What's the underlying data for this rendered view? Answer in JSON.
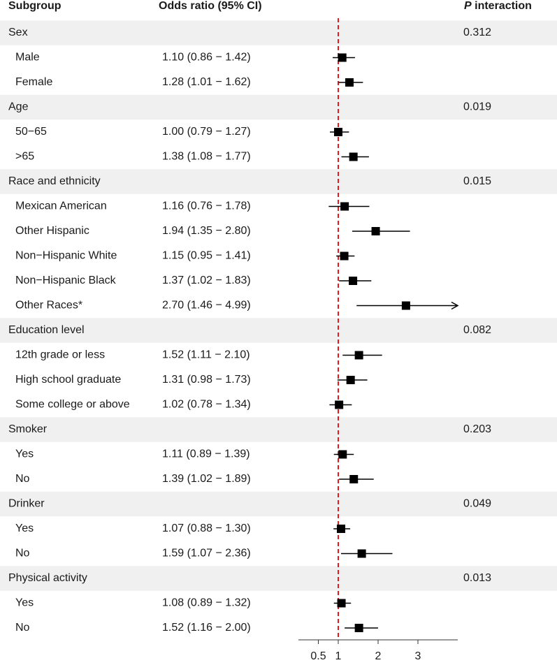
{
  "chart_data": {
    "type": "forest",
    "headers": {
      "subgroup": "Subgroup",
      "estimate": "Odds ratio (95% CI)",
      "p_italic": "P",
      "p_rest": "interaction"
    },
    "xlim": [
      0,
      4
    ],
    "xticks": [
      0.5,
      1,
      2,
      3
    ],
    "reference_line": 1,
    "marker_color": "#000000",
    "reference_color": "#e41a1c",
    "band_color": "#f0f0f0",
    "groups": [
      {
        "name": "Sex",
        "p": 0.312,
        "subgroups": [
          "Male",
          "Female"
        ],
        "values": [
          1.1,
          1.28
        ],
        "lower": [
          0.86,
          1.01
        ],
        "upper": [
          1.42,
          1.62
        ],
        "value_labels": [
          "1.10 (0.86 − 1.42)",
          "1.28 (1.01 − 1.62)"
        ]
      },
      {
        "name": "Age",
        "p": 0.019,
        "subgroups": [
          "50−65",
          ">65"
        ],
        "values": [
          1.0,
          1.38
        ],
        "lower": [
          0.79,
          1.08
        ],
        "upper": [
          1.27,
          1.77
        ],
        "value_labels": [
          "1.00 (0.79 − 1.27)",
          "1.38 (1.08 − 1.77)"
        ]
      },
      {
        "name": "Race and ethnicity",
        "p": 0.015,
        "subgroups": [
          "Mexican American",
          "Other Hispanic",
          "Non−Hispanic White",
          "Non−Hispanic Black",
          "Other Races*"
        ],
        "values": [
          1.16,
          1.94,
          1.15,
          1.37,
          2.7
        ],
        "lower": [
          0.76,
          1.35,
          0.95,
          1.02,
          1.46
        ],
        "upper": [
          1.78,
          2.8,
          1.41,
          1.83,
          4.99
        ],
        "value_labels": [
          "1.16 (0.76 − 1.78)",
          "1.94 (1.35 − 2.80)",
          "1.15 (0.95 − 1.41)",
          "1.37 (1.02 − 1.83)",
          "2.70 (1.46 − 4.99)"
        ]
      },
      {
        "name": "Education level",
        "p": 0.082,
        "subgroups": [
          "12th grade or less",
          "High school graduate",
          "Some college or above"
        ],
        "values": [
          1.52,
          1.31,
          1.02
        ],
        "lower": [
          1.11,
          0.98,
          0.78
        ],
        "upper": [
          2.1,
          1.73,
          1.34
        ],
        "value_labels": [
          "1.52 (1.11 − 2.10)",
          "1.31 (0.98 − 1.73)",
          "1.02 (0.78 − 1.34)"
        ]
      },
      {
        "name": "Smoker",
        "p": 0.203,
        "subgroups": [
          "Yes",
          "No"
        ],
        "values": [
          1.11,
          1.39
        ],
        "lower": [
          0.89,
          1.02
        ],
        "upper": [
          1.39,
          1.89
        ],
        "value_labels": [
          "1.11 (0.89 − 1.39)",
          "1.39 (1.02 − 1.89)"
        ]
      },
      {
        "name": "Drinker",
        "p": 0.049,
        "subgroups": [
          "Yes",
          "No"
        ],
        "values": [
          1.07,
          1.59
        ],
        "lower": [
          0.88,
          1.07
        ],
        "upper": [
          1.3,
          2.36
        ],
        "value_labels": [
          "1.07 (0.88 − 1.30)",
          "1.59 (1.07 − 2.36)"
        ]
      },
      {
        "name": "Physical activity",
        "p": 0.013,
        "subgroups": [
          "Yes",
          "No"
        ],
        "values": [
          1.08,
          1.52
        ],
        "lower": [
          0.89,
          1.16
        ],
        "upper": [
          1.32,
          2.0
        ],
        "value_labels": [
          "1.08 (0.89 − 1.32)",
          "1.52 (1.16 − 2.00)"
        ]
      }
    ]
  }
}
